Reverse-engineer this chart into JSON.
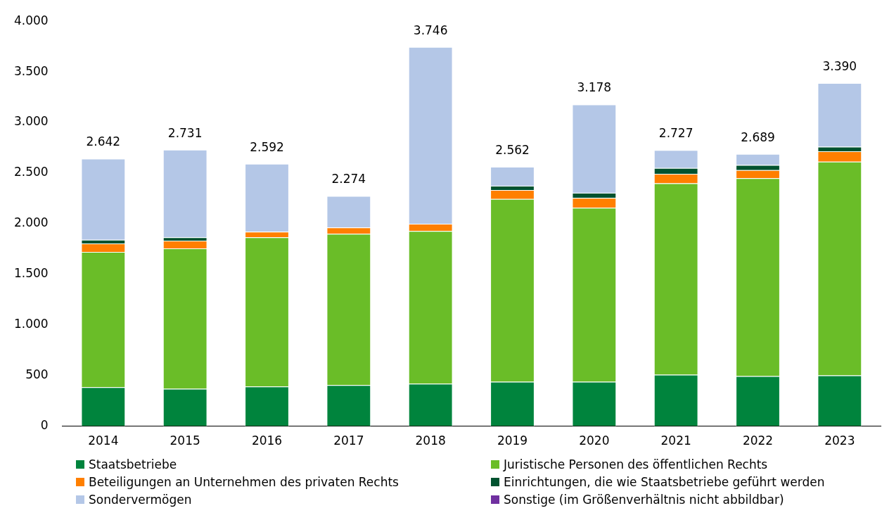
{
  "chart_data": {
    "type": "bar",
    "stacked": true,
    "categories": [
      "2014",
      "2015",
      "2016",
      "2017",
      "2018",
      "2019",
      "2020",
      "2021",
      "2022",
      "2023"
    ],
    "series": [
      {
        "name": "Staatsbetriebe",
        "color": "#00843d",
        "values": [
          384,
          370,
          391,
          405,
          419,
          439,
          439,
          508,
          494,
          501
        ]
      },
      {
        "name": "Juristische Personen des öffentlichen Rechts",
        "color": "#6abd28",
        "values": [
          1338,
          1386,
          1475,
          1495,
          1509,
          1805,
          1718,
          1891,
          1955,
          2111
        ]
      },
      {
        "name": "Beteiligungen an Unternehmen des privaten Rechts",
        "color": "#ff7f00",
        "values": [
          82,
          76,
          55,
          62,
          71,
          89,
          98,
          94,
          81,
          103
        ]
      },
      {
        "name": "Einrichtungen, die wie Staatsbetriebe geführt werden",
        "color": "#00522f",
        "values": [
          37,
          34,
          null,
          null,
          null,
          41,
          50,
          57,
          50,
          45
        ]
      },
      {
        "name": "Sondervermögen",
        "color": "#b4c7e7",
        "values": [
          801,
          865,
          671,
          312,
          1747,
          188,
          873,
          177,
          109,
          630
        ]
      },
      {
        "name": "Sonstige (im Größenverhältnis nicht abbildbar)",
        "color": "#7030a0",
        "values": [
          null,
          null,
          null,
          null,
          null,
          null,
          null,
          null,
          null,
          null
        ]
      }
    ],
    "totals": [
      "2.642",
      "2.731",
      "2.592",
      "2.274",
      "3.746",
      "2.562",
      "3.178",
      "2.727",
      "2.689",
      "3.390"
    ],
    "ylim": [
      0,
      4000
    ],
    "yticks": [
      0,
      500,
      {
        "value": 1000,
        "label": "1.000"
      },
      {
        "value": 1500,
        "label": "1.500"
      },
      {
        "value": 2000,
        "label": "2.000"
      },
      {
        "value": 2500,
        "label": "2.500"
      },
      {
        "value": 3000,
        "label": "3.000"
      },
      {
        "value": 3500,
        "label": "3.500"
      },
      {
        "value": 4000,
        "label": "4.000"
      }
    ],
    "grid": false,
    "legend": "bottom"
  }
}
